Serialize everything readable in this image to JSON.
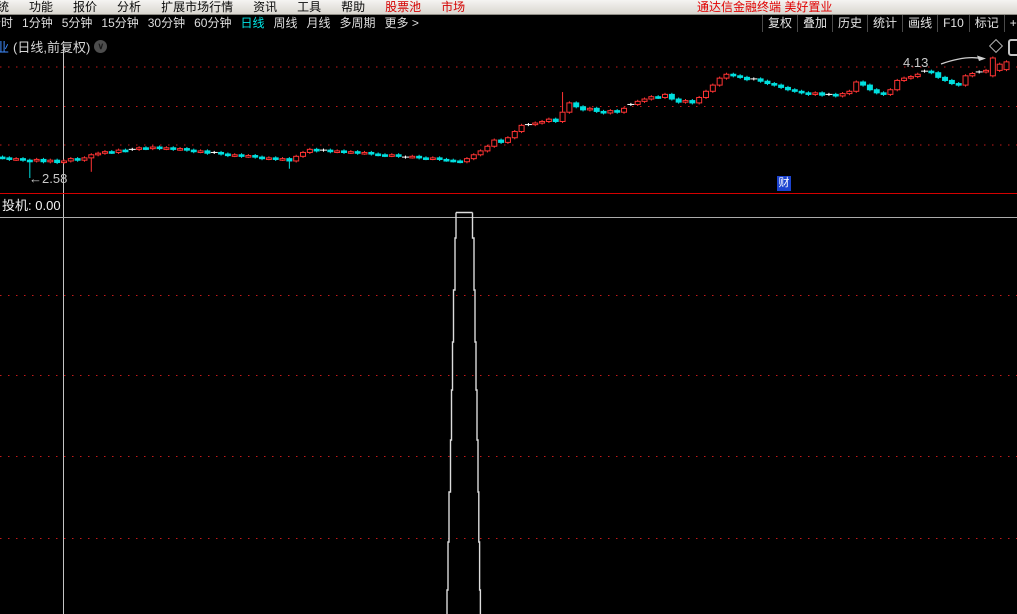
{
  "window": {
    "brand": "通达信金融终端 美好置业"
  },
  "menubar": {
    "partial_item": "系统",
    "items": [
      "功能",
      "报价",
      "分析",
      "扩展市场行情",
      "资讯",
      "工具",
      "帮助"
    ],
    "red_items": [
      "股票池",
      "市场"
    ]
  },
  "toolbar": {
    "periods": [
      "分时",
      "1分钟",
      "5分钟",
      "15分钟",
      "30分钟",
      "60分钟",
      "日线",
      "周线",
      "月线",
      "多周期",
      "更多 >"
    ],
    "active_period": "日线",
    "right_buttons": [
      "复权",
      "叠加",
      "历史",
      "统计",
      "画线",
      "F10",
      "标记",
      "+自选"
    ]
  },
  "chart": {
    "title_prefix": "业",
    "title": "(日线,前复权)",
    "chevron_icon": "circle-chevron-down",
    "high_label": "4.13",
    "low_label": "←2.58",
    "event_marker": "财",
    "marker_icons": [
      "diamond-outline-icon",
      "square-outline-icon"
    ]
  },
  "subpanel": {
    "indicator_name": "投机:",
    "indicator_value": "0.00"
  },
  "colors": {
    "up": "#ff3434",
    "down": "#00dfdf",
    "doji": "#ffffff",
    "grid_red": "#c41a1a",
    "divider_red": "#d40000",
    "grid_white": "#ababab",
    "accent_cyan": "#00e5e5",
    "brand_red": "#e00000",
    "marker_blue": "#1c43cf",
    "cursor_line": "#c4c4c4",
    "signal_bar": "#dcdcdc"
  },
  "chart_data": {
    "type": "candlestick",
    "title": "(日线,前复权)",
    "price_annotations": {
      "high": 4.13,
      "low": 2.58
    },
    "first_open": 2.85,
    "closes": [
      2.84,
      2.82,
      2.83,
      2.81,
      2.8,
      2.82,
      2.79,
      2.81,
      2.78,
      2.8,
      2.83,
      2.81,
      2.84,
      2.88,
      2.9,
      2.92,
      2.91,
      2.94,
      2.93,
      2.95,
      2.97,
      2.96,
      2.98,
      2.96,
      2.97,
      2.95,
      2.96,
      2.94,
      2.92,
      2.93,
      2.9,
      2.91,
      2.89,
      2.87,
      2.88,
      2.86,
      2.87,
      2.85,
      2.83,
      2.84,
      2.82,
      2.83,
      2.8,
      2.86,
      2.91,
      2.95,
      2.93,
      2.94,
      2.92,
      2.93,
      2.91,
      2.92,
      2.9,
      2.91,
      2.89,
      2.88,
      2.87,
      2.88,
      2.86,
      2.85,
      2.86,
      2.84,
      2.83,
      2.84,
      2.82,
      2.81,
      2.8,
      2.79,
      2.83,
      2.88,
      2.93,
      2.99,
      3.07,
      3.04,
      3.1,
      3.18,
      3.26,
      3.27,
      3.29,
      3.31,
      3.34,
      3.31,
      3.43,
      3.55,
      3.5,
      3.46,
      3.48,
      3.44,
      3.42,
      3.45,
      3.43,
      3.48,
      3.53,
      3.57,
      3.6,
      3.63,
      3.62,
      3.66,
      3.6,
      3.56,
      3.58,
      3.55,
      3.62,
      3.7,
      3.78,
      3.87,
      3.92,
      3.9,
      3.88,
      3.85,
      3.86,
      3.83,
      3.8,
      3.78,
      3.75,
      3.72,
      3.7,
      3.68,
      3.66,
      3.68,
      3.65,
      3.66,
      3.64,
      3.67,
      3.7,
      3.82,
      3.78,
      3.72,
      3.68,
      3.66,
      3.72,
      3.84,
      3.87,
      3.89,
      3.92,
      3.96,
      3.94,
      3.88,
      3.84,
      3.8,
      3.78,
      3.9,
      3.93,
      3.95,
      3.97,
      4.13,
      4.05,
      4.08
    ],
    "special": {
      "4": {
        "low": 2.58
      },
      "13": {
        "low": 2.66
      },
      "42": {
        "low": 2.7
      },
      "82": {
        "high": 3.69
      },
      "145": {
        "open": 3.9
      },
      "146": {
        "open": 3.97
      },
      "147": {
        "open": 3.98
      }
    },
    "doji_indices": [
      19,
      31,
      47,
      59,
      77,
      92,
      110,
      121,
      135,
      143
    ],
    "subpanel": {
      "type": "bar",
      "indicator": "投机",
      "current_value": 0.0,
      "signal_index": 68
    }
  }
}
